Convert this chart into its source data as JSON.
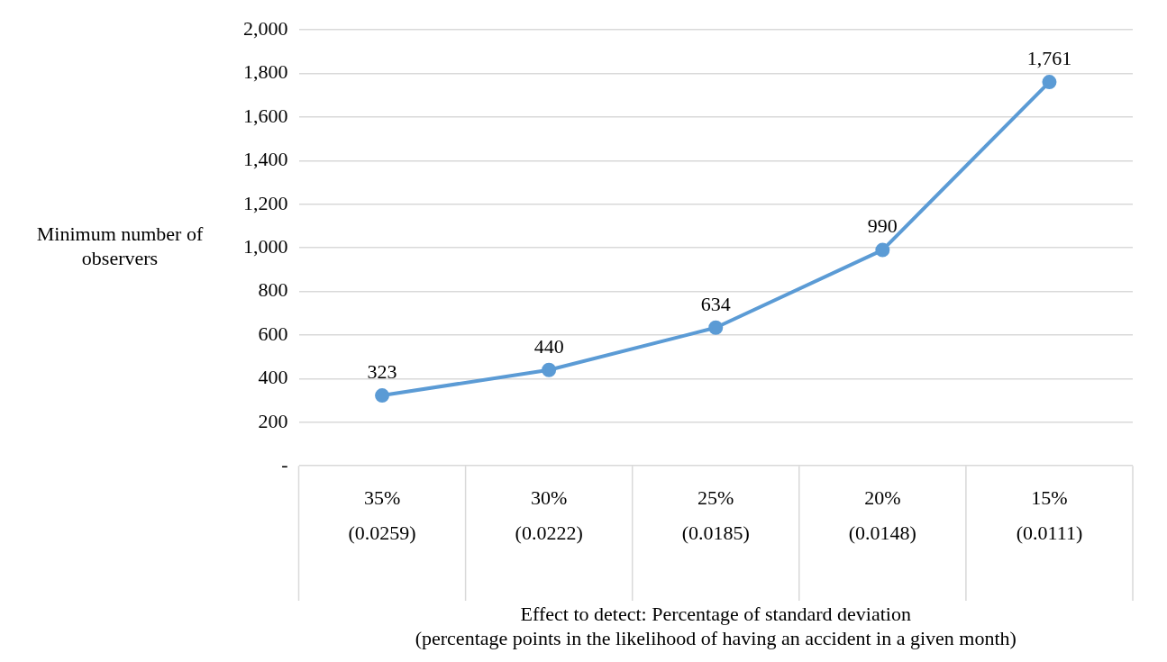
{
  "chart_data": {
    "type": "line",
    "categories": [
      "35%\n(0.0259)",
      "30%\n(0.0222)",
      "25%\n(0.0185)",
      "20%\n(0.0148)",
      "15%\n(0.0111)"
    ],
    "values": [
      323,
      440,
      634,
      990,
      1761
    ],
    "color": "#5b9bd5",
    "xlabel": "Effect to detect: Percentage of standard deviation\n(percentage points in the likelihood of having an accident in a given month)",
    "ylabel": "Minimum number of\nobservers",
    "value_labels": [
      "323",
      "440",
      "634",
      "990",
      "1,761"
    ],
    "ylim": [
      0,
      2000
    ],
    "yticks": [
      {
        "value": 0,
        "label": "-"
      },
      200,
      400,
      600,
      800,
      {
        "value": 1000,
        "label": "1,000"
      },
      {
        "value": 1200,
        "label": "1,200"
      },
      {
        "value": 1400,
        "label": "1,400"
      },
      {
        "value": 1600,
        "label": "1,600"
      },
      {
        "value": 1800,
        "label": "1,800"
      },
      {
        "value": 2000,
        "label": "2,000"
      }
    ],
    "grid": "y",
    "legend": false,
    "marker": "circle",
    "line_style": "solid"
  }
}
